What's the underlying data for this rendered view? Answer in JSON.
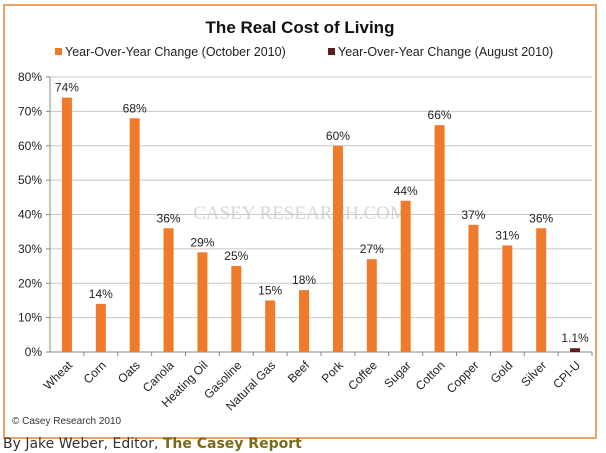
{
  "chart_data": {
    "type": "bar",
    "title": "The Real Cost of Living",
    "categories": [
      "Wheat",
      "Corn",
      "Oats",
      "Canola",
      "Heating Oil",
      "Gasoline",
      "Natural Gas",
      "Beef",
      "Pork",
      "Coffee",
      "Sugar",
      "Cotton",
      "Copper",
      "Gold",
      "Silver",
      "CPI-U"
    ],
    "series": [
      {
        "name": "Year-Over-Year Change (October 2010)",
        "color": "#f07a2c",
        "values": [
          74,
          14,
          68,
          36,
          29,
          25,
          15,
          18,
          60,
          27,
          44,
          66,
          37,
          31,
          36,
          null
        ],
        "labels": [
          "74%",
          "14%",
          "68%",
          "36%",
          "29%",
          "25%",
          "15%",
          "18%",
          "60%",
          "27%",
          "44%",
          "66%",
          "37%",
          "31%",
          "36%",
          ""
        ]
      },
      {
        "name": "Year-Over-Year Change (August 2010)",
        "color": "#5a1e1e",
        "values": [
          null,
          null,
          null,
          null,
          null,
          null,
          null,
          null,
          null,
          null,
          null,
          null,
          null,
          null,
          null,
          1.1
        ],
        "labels": [
          "",
          "",
          "",
          "",
          "",
          "",
          "",
          "",
          "",
          "",
          "",
          "",
          "",
          "",
          "",
          "1.1%"
        ]
      }
    ],
    "yticks": [
      "0%",
      "10%",
      "20%",
      "30%",
      "40%",
      "50%",
      "60%",
      "70%",
      "80%"
    ],
    "ylim": [
      0,
      80
    ],
    "xlabel": "",
    "ylabel": "",
    "grid": true,
    "legend": "top",
    "watermark": "CASEY RESEARCH.COM",
    "copyright": "© Casey Research 2010"
  },
  "caption": {
    "prefix": "By Jake Weber, Editor, ",
    "link": "The Casey Report"
  }
}
